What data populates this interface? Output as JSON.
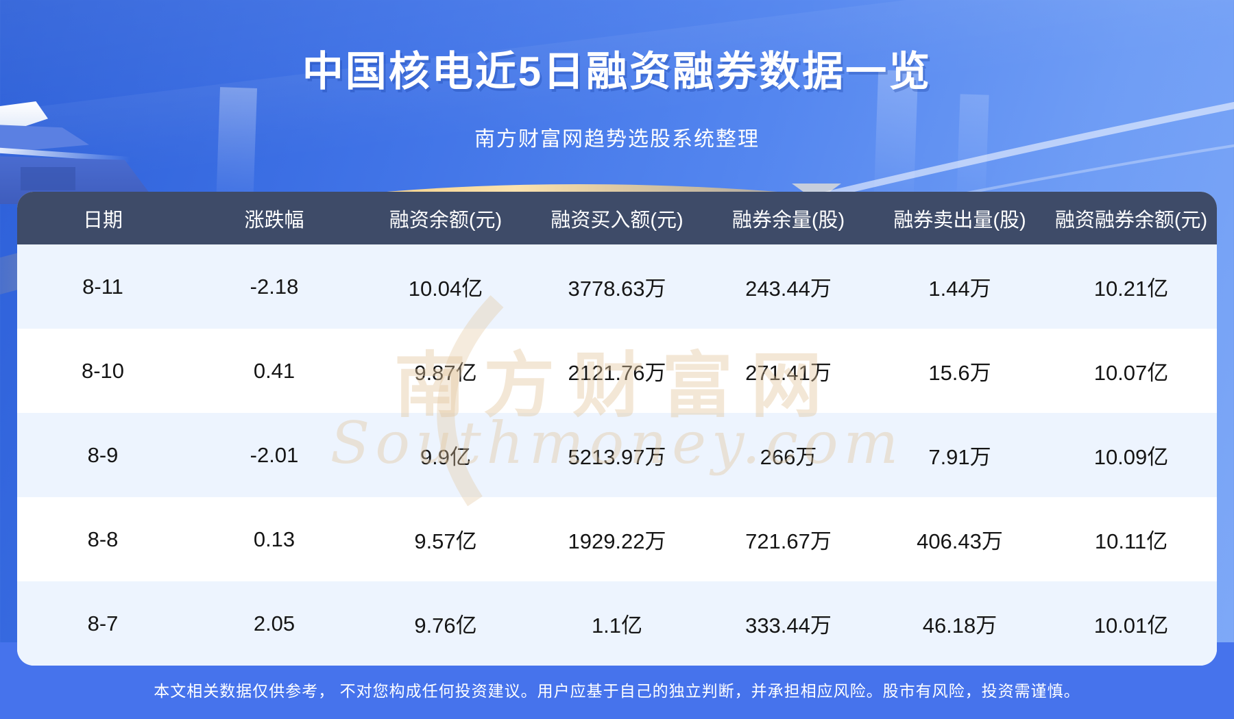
{
  "page": {
    "title": "中国核电近5日融资融券数据一览",
    "subtitle": "南方财富网趋势选股系统整理",
    "disclaimer": "本文相关数据仅供参考， 不对您构成任何投资建议。用户应基于自己的独立判断，并承担相应风险。股市有风险，投资需谨慎。"
  },
  "watermark": {
    "cn": "南方财富网",
    "en": "Southmoney.com"
  },
  "colors": {
    "background_blue": "#4a7eee",
    "bottom_band": "#4673ec",
    "header_bar": "#3e4b68",
    "stripe_row": "#edf4fe",
    "plain_row": "#ffffff",
    "gold_arc": "#f7c76a",
    "watermark_gold": "#e2c59e"
  },
  "chart_data": {
    "type": "table",
    "title": "中国核电近5日融资融券数据一览",
    "subtitle": "南方财富网趋势选股系统整理",
    "columns": [
      "日期",
      "涨跌幅",
      "融资余额(元)",
      "融资买入额(元)",
      "融券余量(股)",
      "融券卖出量(股)",
      "融资融券余额(元)"
    ],
    "rows": [
      [
        "8-11",
        "-2.18",
        "10.04亿",
        "3778.63万",
        "243.44万",
        "1.44万",
        "10.21亿"
      ],
      [
        "8-10",
        "0.41",
        "9.87亿",
        "2121.76万",
        "271.41万",
        "15.6万",
        "10.07亿"
      ],
      [
        "8-9",
        "-2.01",
        "9.9亿",
        "5213.97万",
        "266万",
        "7.91万",
        "10.09亿"
      ],
      [
        "8-8",
        "0.13",
        "9.57亿",
        "1929.22万",
        "721.67万",
        "406.43万",
        "10.11亿"
      ],
      [
        "8-7",
        "2.05",
        "9.76亿",
        "1.1亿",
        "333.44万",
        "46.18万",
        "10.01亿"
      ]
    ]
  }
}
